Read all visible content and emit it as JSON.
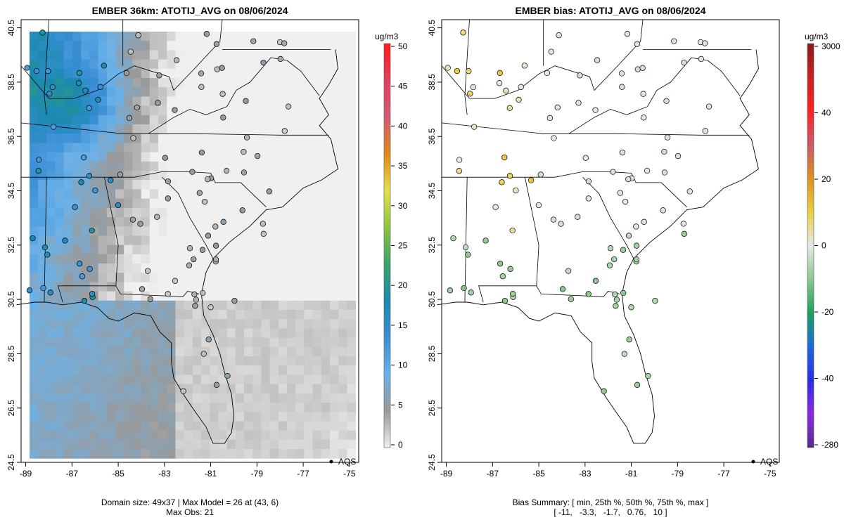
{
  "left_panel": {
    "title": "EMBER 36km: ATOTIJ_AVG on 08/06/2024",
    "footer_line1": "Domain size: 49x37 | Max Model = 26 at (43, 6)",
    "footer_line2": "Max Obs: 21",
    "legend_label": "AQS",
    "colorbar_title": "ug/m3",
    "colorbar_ticks": [
      "0",
      "5",
      "10",
      "15",
      "20",
      "25",
      "30",
      "35",
      "40",
      "45",
      "50"
    ]
  },
  "right_panel": {
    "title": "EMBER bias: ATOTIJ_AVG on 08/06/2024",
    "footer_line1": "Bias Summary: [ min, 25th %, 50th %, 75th %, max ]",
    "footer_line2": "[ -11,   -3.3,   -1.7,   0.76,   10 ]",
    "legend_label": "AQS",
    "colorbar_title": "ug/m3",
    "colorbar_ticks": [
      "-280",
      "-40",
      "-20",
      "0",
      "20",
      "40",
      "3000"
    ]
  },
  "axes": {
    "x_ticks": [
      "-89",
      "-87",
      "-85",
      "-83",
      "-81",
      "-79",
      "-77",
      "-75"
    ],
    "y_ticks": [
      "24.5",
      "26.5",
      "28.5",
      "30.5",
      "32.5",
      "34.5",
      "36.5",
      "38.5",
      "40.5"
    ],
    "lon_range": [
      -89.2,
      -74.6
    ],
    "lat_range": [
      24.5,
      40.8
    ]
  },
  "colors": {
    "model_scale": [
      "#f0f0f0",
      "#9a9a9a",
      "#6cb2e8",
      "#3b8fd6",
      "#1b8ab0",
      "#3aa36a",
      "#8cc73f",
      "#e6e04a",
      "#e08a1a",
      "#d55a72",
      "#e04060",
      "#ff1a1a"
    ],
    "bias_scale": [
      "#5a2a8a",
      "#8a2ae0",
      "#2a2ae8",
      "#1a6ad8",
      "#1aa060",
      "#8cc88c",
      "#e8e8e8",
      "#e8d040",
      "#e09020",
      "#c85a6a",
      "#ff2020",
      "#c82020",
      "#8a1a1a"
    ]
  }
}
